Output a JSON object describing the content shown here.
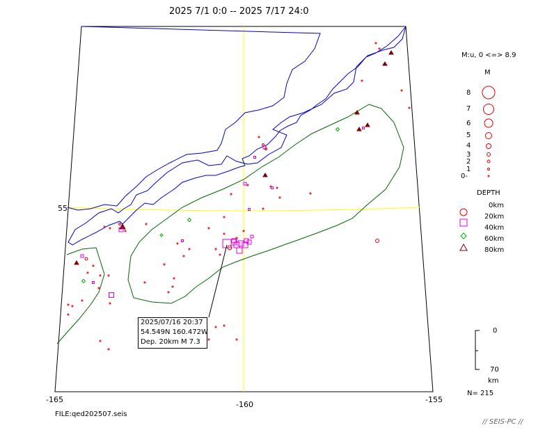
{
  "title": "2025 7/1 0:0 -- 2025 7/17 24:0",
  "axis": {
    "lon_ticks": [
      "-165",
      "-160",
      "-155"
    ],
    "lat_tick": "55"
  },
  "file_label": "FILE:qed202507.seis",
  "footer": "// SEIS-PC //",
  "magnitude_legend": {
    "range_text": "M:u, 0 <=> 8.9",
    "header": "M",
    "levels": [
      "8",
      "7",
      "6",
      "5",
      "4",
      "3",
      "2",
      "1",
      "0-"
    ]
  },
  "depth_legend": {
    "header": "DEPTH",
    "items": [
      {
        "label": "0km",
        "symbol": "none",
        "color": "#000000"
      },
      {
        "label": "20km",
        "symbol": "circle",
        "color": "#e00000"
      },
      {
        "label": "40km",
        "symbol": "square",
        "color": "#e000e0"
      },
      {
        "label": "60km",
        "symbol": "diamond",
        "color": "#00b000"
      },
      {
        "label": "80km",
        "symbol": "triangle",
        "color": "#800000"
      }
    ]
  },
  "depth_scale": {
    "top": "0",
    "bottom": "70",
    "unit": "km"
  },
  "count": "N= 215",
  "event_info": {
    "datetime": "2025/07/16 20:37",
    "location": "54.549N  160.472W",
    "depth_mag": "Dep. 20km   M 7.3"
  },
  "colors": {
    "coastline": "#0000cc",
    "region": "#006600",
    "gridline": "#ffff00",
    "frame": "#000000"
  }
}
